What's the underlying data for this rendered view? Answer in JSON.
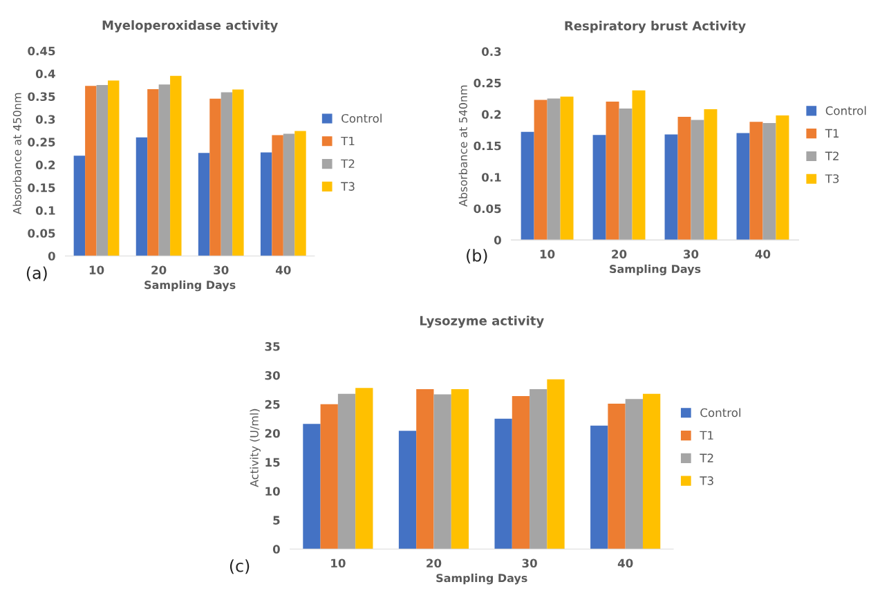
{
  "chart_data": [
    {
      "type": "bar",
      "title": "Myeloperoxidase activity",
      "xlabel": "Sampling Days",
      "ylabel": "Absorbance at 450nm",
      "categories": [
        "10",
        "20",
        "30",
        "40"
      ],
      "ylim": [
        0,
        0.45
      ],
      "yticks": [
        {
          "value": 0,
          "label": "0"
        },
        0.05,
        0.1,
        0.15,
        0.2,
        0.25,
        0.3,
        0.35,
        0.4,
        0.45
      ],
      "grid": false,
      "legend": "right",
      "annotations": [
        "(a)"
      ],
      "series": [
        {
          "name": "Control",
          "color": "#4472c4",
          "values": [
            0.22,
            0.26,
            0.226,
            0.227
          ]
        },
        {
          "name": "T1",
          "color": "#ed7d31",
          "values": [
            0.373,
            0.366,
            0.345,
            0.265
          ]
        },
        {
          "name": "T2",
          "color": "#a5a5a5",
          "values": [
            0.375,
            0.376,
            0.359,
            0.268
          ]
        },
        {
          "name": "T3",
          "color": "#ffc000",
          "values": [
            0.385,
            0.395,
            0.365,
            0.274
          ]
        }
      ]
    },
    {
      "type": "bar",
      "title": "Respiratory brust Activity",
      "xlabel": "Sampling Days",
      "ylabel": "Absorbance at 540nm",
      "categories": [
        "10",
        "20",
        "30",
        "40"
      ],
      "ylim": [
        0,
        0.3
      ],
      "yticks": [
        {
          "value": 0,
          "label": "0"
        },
        0.05,
        0.1,
        0.15,
        0.2,
        0.25,
        0.3
      ],
      "grid": false,
      "legend": "right",
      "annotations": [
        "(b)"
      ],
      "series": [
        {
          "name": "Control",
          "color": "#4472c4",
          "values": [
            0.172,
            0.167,
            0.168,
            0.17
          ]
        },
        {
          "name": "T1",
          "color": "#ed7d31",
          "values": [
            0.223,
            0.22,
            0.196,
            0.188
          ]
        },
        {
          "name": "T2",
          "color": "#a5a5a5",
          "values": [
            0.225,
            0.209,
            0.191,
            0.186
          ]
        },
        {
          "name": "T3",
          "color": "#ffc000",
          "values": [
            0.228,
            0.238,
            0.208,
            0.198
          ]
        }
      ]
    },
    {
      "type": "bar",
      "title": "Lysozyme activity",
      "xlabel": "Sampling Days",
      "ylabel": "Activity (U/ml)",
      "categories": [
        "10",
        "20",
        "30",
        "40"
      ],
      "ylim": [
        0,
        35
      ],
      "yticks": [
        0,
        5,
        10,
        15,
        20,
        25,
        30,
        35
      ],
      "grid": false,
      "legend": "right",
      "annotations": [
        "(c)"
      ],
      "series": [
        {
          "name": "Control",
          "color": "#4472c4",
          "values": [
            21.6,
            20.4,
            22.5,
            21.3
          ]
        },
        {
          "name": "T1",
          "color": "#ed7d31",
          "values": [
            25.0,
            27.6,
            26.4,
            25.1
          ]
        },
        {
          "name": "T2",
          "color": "#a5a5a5",
          "values": [
            26.8,
            26.7,
            27.6,
            25.9
          ]
        },
        {
          "name": "T3",
          "color": "#ffc000",
          "values": [
            27.8,
            27.6,
            29.3,
            26.8
          ]
        }
      ]
    }
  ]
}
